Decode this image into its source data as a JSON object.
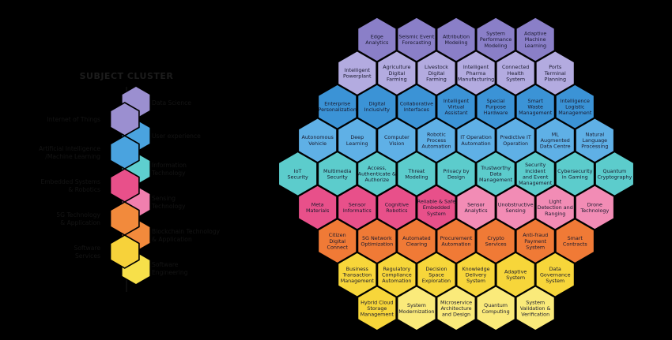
{
  "legend": {
    "title": "SUBJECT CLUSTER",
    "right_labels": [
      {
        "lines": [
          "Data Science"
        ],
        "color": "#9b8fd0"
      },
      {
        "lines": [
          "User experience"
        ],
        "color": "#4aa3df"
      },
      {
        "lines": [
          "Information",
          "Technology"
        ],
        "color": "#5ecfcf"
      },
      {
        "lines": [
          "Sensing",
          "Technology"
        ],
        "color": "#f07fae"
      },
      {
        "lines": [
          "Blockchain Technology",
          "& Application"
        ],
        "color": "#f28a3c"
      },
      {
        "lines": [
          "Software",
          "Engineering"
        ],
        "color": "#f7e04a"
      }
    ],
    "left_labels": [
      {
        "lines": [
          "Internet of Things"
        ],
        "color": "#9b8fd0"
      },
      {
        "lines": [
          "Artificial Intelligence",
          "/Machine Learning"
        ],
        "color": "#4aa3df"
      },
      {
        "lines": [
          "Embedded Systems",
          "& Robotics"
        ],
        "color": "#e8508a"
      },
      {
        "lines": [
          "5G Technology",
          "& Application"
        ],
        "color": "#f28a3c"
      },
      {
        "lines": [
          "Software",
          "Services"
        ],
        "color": "#f7d23a"
      }
    ]
  },
  "colors": {
    "violet_dark": "#8a7fc8",
    "violet_light": "#b3abe0",
    "blue": "#3b93d6",
    "blue_light": "#5fb0e6",
    "teal": "#5ccccc",
    "pink_dark": "#e8508a",
    "pink_light": "#f28cb5",
    "orange": "#f07a36",
    "yellow": "#f7d63a",
    "yellow_light": "#faea7a"
  },
  "hexes": [
    {
      "row": 0,
      "items": [
        {
          "lines": [
            "Edge",
            "Analytics"
          ],
          "color": "violet_dark"
        },
        {
          "lines": [
            "Seismic Event",
            "Forecasting"
          ],
          "color": "violet_dark"
        },
        {
          "lines": [
            "Attribution",
            "Modeling"
          ],
          "color": "violet_dark"
        },
        {
          "lines": [
            "System",
            "Performance",
            "Modeling"
          ],
          "color": "violet_dark"
        },
        {
          "lines": [
            "Adaptive",
            "Machine",
            "Learning"
          ],
          "color": "violet_dark"
        }
      ]
    },
    {
      "row": 1,
      "items": [
        {
          "lines": [
            "Intelligent",
            "Powerplant"
          ],
          "color": "violet_light"
        },
        {
          "lines": [
            "Agriculture",
            "Digital",
            "Farming"
          ],
          "color": "violet_light"
        },
        {
          "lines": [
            "Livestock",
            "Digital",
            "Farming"
          ],
          "color": "violet_light"
        },
        {
          "lines": [
            "Intelligent",
            "Pharma",
            "Manufacturing"
          ],
          "color": "violet_light"
        },
        {
          "lines": [
            "Connected",
            "Health",
            "System"
          ],
          "color": "violet_light"
        },
        {
          "lines": [
            "Ports",
            "Terminal",
            "Planning"
          ],
          "color": "violet_light"
        }
      ]
    },
    {
      "row": 2,
      "items": [
        {
          "lines": [
            "Enterprise",
            "Personalization"
          ],
          "color": "blue"
        },
        {
          "lines": [
            "Digital",
            "Inclusivity"
          ],
          "color": "blue"
        },
        {
          "lines": [
            "Collaborative",
            "Interfaces"
          ],
          "color": "blue"
        },
        {
          "lines": [
            "Intelligent",
            "Virtual",
            "Assistant"
          ],
          "color": "blue"
        },
        {
          "lines": [
            "Special",
            "Purpose",
            "Hardware"
          ],
          "color": "blue"
        },
        {
          "lines": [
            "Smart",
            "Waste",
            "Management"
          ],
          "color": "blue"
        },
        {
          "lines": [
            "Intelligence",
            "Logistic",
            "Management"
          ],
          "color": "blue"
        }
      ]
    },
    {
      "row": 3,
      "items": [
        {
          "lines": [
            "Autonomous",
            "Vehicle"
          ],
          "color": "blue_light"
        },
        {
          "lines": [
            "Deep",
            "Learning"
          ],
          "color": "blue_light"
        },
        {
          "lines": [
            "Computer",
            "Vision"
          ],
          "color": "blue_light"
        },
        {
          "lines": [
            "Robotic",
            "Process",
            "Automation"
          ],
          "color": "blue_light"
        },
        {
          "lines": [
            "IT Operation",
            "Automation"
          ],
          "color": "blue_light"
        },
        {
          "lines": [
            "Predictive IT",
            "Operation"
          ],
          "color": "blue_light"
        },
        {
          "lines": [
            "ML",
            "Augmented",
            "Data Centre"
          ],
          "color": "blue_light"
        },
        {
          "lines": [
            "Natural",
            "Language",
            "Processing"
          ],
          "color": "blue_light"
        }
      ]
    },
    {
      "row": 4,
      "items": [
        {
          "lines": [
            "IoT",
            "Security"
          ],
          "color": "teal"
        },
        {
          "lines": [
            "Multimedia",
            "Security"
          ],
          "color": "teal"
        },
        {
          "lines": [
            "Access,",
            "Authenticate &",
            "Authorize"
          ],
          "color": "teal"
        },
        {
          "lines": [
            "Threat",
            "Modeling"
          ],
          "color": "teal"
        },
        {
          "lines": [
            "Privacy by",
            "Design"
          ],
          "color": "teal"
        },
        {
          "lines": [
            "Trustworthy",
            "Data",
            "Management"
          ],
          "color": "teal"
        },
        {
          "lines": [
            "Security",
            "Incident",
            "and Event",
            "Management"
          ],
          "color": "teal"
        },
        {
          "lines": [
            "Cybersecurity",
            "in Gaming"
          ],
          "color": "teal"
        },
        {
          "lines": [
            "Quantum",
            "Cryptography"
          ],
          "color": "teal"
        }
      ]
    },
    {
      "row": 5,
      "items": [
        {
          "lines": [
            "Meta",
            "Materials"
          ],
          "color": "pink_dark"
        },
        {
          "lines": [
            "Sensor",
            "Informatics"
          ],
          "color": "pink_dark"
        },
        {
          "lines": [
            "Cognitive",
            "Robotics"
          ],
          "color": "pink_dark"
        },
        {
          "lines": [
            "Reliable & Safe",
            "Embedded",
            "System"
          ],
          "color": "pink_dark"
        },
        {
          "lines": [
            "Sensor",
            "Analytics"
          ],
          "color": "pink_light"
        },
        {
          "lines": [
            "Unobstructive",
            "Sensing"
          ],
          "color": "pink_light"
        },
        {
          "lines": [
            "Light",
            "Detection and",
            "Ranging"
          ],
          "color": "pink_light"
        },
        {
          "lines": [
            "Drone",
            "Technology"
          ],
          "color": "pink_light"
        }
      ]
    },
    {
      "row": 6,
      "items": [
        {
          "lines": [
            "Citizen",
            "Digital",
            "Connect"
          ],
          "color": "orange"
        },
        {
          "lines": [
            "5G Network",
            "Optimization"
          ],
          "color": "orange"
        },
        {
          "lines": [
            "Automated",
            "Clearing"
          ],
          "color": "orange"
        },
        {
          "lines": [
            "Procurement",
            "Automation"
          ],
          "color": "orange"
        },
        {
          "lines": [
            "Crypto",
            "Services"
          ],
          "color": "orange"
        },
        {
          "lines": [
            "Anti-fraud",
            "Payment",
            "System"
          ],
          "color": "orange"
        },
        {
          "lines": [
            "Smart",
            "Contracts"
          ],
          "color": "orange"
        }
      ]
    },
    {
      "row": 7,
      "items": [
        {
          "lines": [
            "Business",
            "Transaction",
            "Management"
          ],
          "color": "yellow"
        },
        {
          "lines": [
            "Regulatory",
            "Compliance",
            "Automation"
          ],
          "color": "yellow"
        },
        {
          "lines": [
            "Decision",
            "Space",
            "Exploration"
          ],
          "color": "yellow"
        },
        {
          "lines": [
            "Knowledge",
            "Delivery",
            "System"
          ],
          "color": "yellow"
        },
        {
          "lines": [
            "Adaptive",
            "System"
          ],
          "color": "yellow"
        },
        {
          "lines": [
            "Data",
            "Governance",
            "System"
          ],
          "color": "yellow"
        }
      ]
    },
    {
      "row": 8,
      "items": [
        {
          "lines": [
            "Hybrid Cloud",
            "Storage",
            "Management"
          ],
          "color": "yellow"
        },
        {
          "lines": [
            "System",
            "Modernization"
          ],
          "color": "yellow_light"
        },
        {
          "lines": [
            "Microservice",
            "Architecture",
            "and Design"
          ],
          "color": "yellow_light"
        },
        {
          "lines": [
            "Quantum",
            "Computing"
          ],
          "color": "yellow_light"
        },
        {
          "lines": [
            "System",
            "Validation &",
            "Verification"
          ],
          "color": "yellow_light"
        }
      ]
    }
  ]
}
